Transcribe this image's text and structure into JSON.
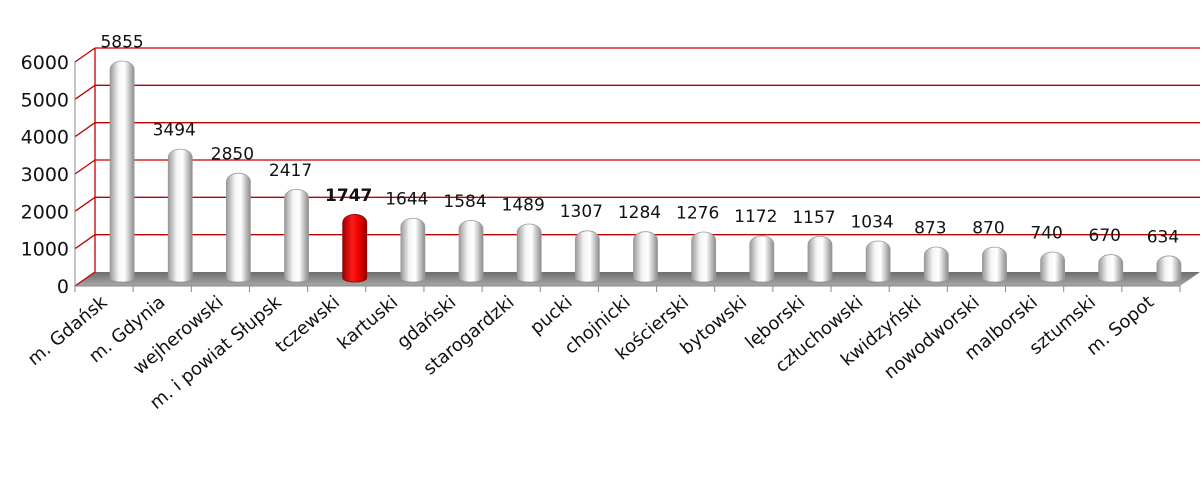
{
  "chart_data": {
    "type": "bar",
    "title": "",
    "xlabel": "",
    "ylabel": "",
    "ylim": [
      0,
      6000
    ],
    "yticks": [
      0,
      1000,
      2000,
      3000,
      4000,
      5000,
      6000
    ],
    "grid": true,
    "categories": [
      "m. Gdańsk",
      "m. Gdynia",
      "wejherowski",
      "m. i powiat Słupsk",
      "tczewski",
      "kartuski",
      "gdański",
      "starogardzki",
      "pucki",
      "chojnicki",
      "kościerski",
      "bytowski",
      "lęborski",
      "człuchowski",
      "kwidzyński",
      "nowodworski",
      "malborski",
      "sztumski",
      "m. Sopot"
    ],
    "values": [
      5855,
      3494,
      2850,
      2417,
      1747,
      1644,
      1584,
      1489,
      1307,
      1284,
      1276,
      1172,
      1157,
      1034,
      873,
      870,
      740,
      670,
      634
    ],
    "highlight_category": "tczewski",
    "colors": {
      "bar": "#d9d9d9",
      "highlight": "#e00000",
      "grid": "#c00000",
      "floor": "#7a7a7a"
    }
  }
}
